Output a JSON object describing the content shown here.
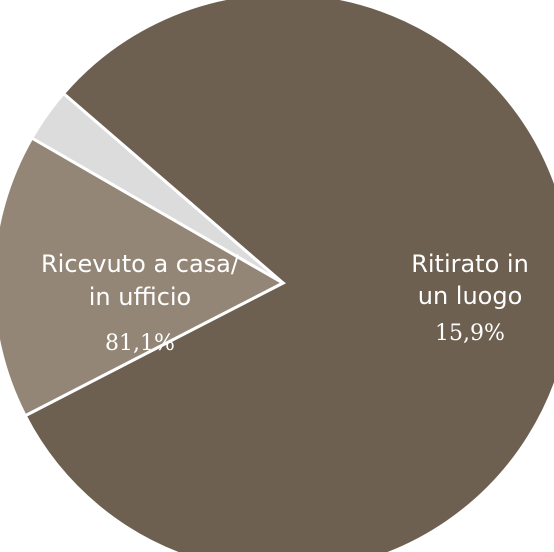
{
  "chart_data": {
    "type": "pie",
    "title": "",
    "slices": [
      {
        "label_lines": [
          "Ricevuto a casa/",
          "in ufficio"
        ],
        "value": 81.1,
        "value_label": "81,1%",
        "color": "#6e6051"
      },
      {
        "label_lines": [
          "Ritirato in",
          "un luogo"
        ],
        "value": 15.9,
        "value_label": "15,9%",
        "color": "#948677"
      },
      {
        "label_lines": [],
        "value": 3.0,
        "value_label": "",
        "color": "#dcdcdc"
      }
    ],
    "separator_color": "#ffffff"
  }
}
